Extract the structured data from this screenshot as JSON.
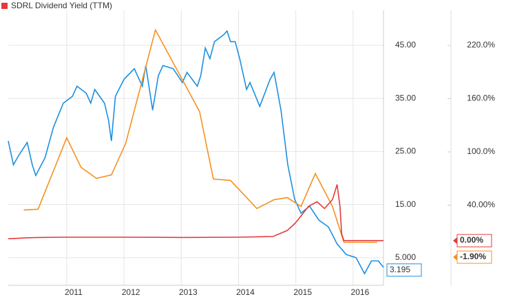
{
  "chart_data": {
    "type": "line",
    "xlim": [
      2009.98,
      2016.53
    ],
    "xticks": [
      2011,
      2012,
      2013,
      2014,
      2015,
      2016
    ],
    "ylim": [
      -0.2,
      51.6
    ],
    "yticks": [
      {
        "value": 5,
        "label": "5.000"
      },
      {
        "value": 15,
        "label": "15.00"
      },
      {
        "value": 25,
        "label": "25.00"
      },
      {
        "value": 35,
        "label": "35.00"
      },
      {
        "value": 45,
        "label": "45.00"
      }
    ],
    "y2lim": [
      -50.3,
      259.5
    ],
    "y2ticks": [
      {
        "value": 40,
        "label": "40.00%"
      },
      {
        "value": 100,
        "label": "100.0%"
      },
      {
        "value": 160,
        "label": "160.0%"
      },
      {
        "value": 220,
        "label": "220.0%"
      }
    ],
    "grid": true,
    "legend": "top-left",
    "series": [
      {
        "color": "#1a8fe0",
        "axis": "y",
        "end_label": "3.195",
        "x": [
          2009.98,
          2010.07,
          2010.17,
          2010.31,
          2010.4,
          2010.46,
          2010.62,
          2010.77,
          2010.94,
          2011.1,
          2011.18,
          2011.34,
          2011.42,
          2011.49,
          2011.66,
          2011.73,
          2011.78,
          2011.85,
          2012.0,
          2012.18,
          2012.32,
          2012.38,
          2012.5,
          2012.6,
          2012.68,
          2012.86,
          2013.02,
          2013.1,
          2013.28,
          2013.34,
          2013.42,
          2013.5,
          2013.58,
          2013.74,
          2013.8,
          2013.86,
          2013.94,
          2014.02,
          2014.14,
          2014.2,
          2014.37,
          2014.55,
          2014.62,
          2014.74,
          2014.86,
          2014.98,
          2015.09,
          2015.24,
          2015.4,
          2015.57,
          2015.72,
          2015.88,
          2016.05,
          2016.2,
          2016.32,
          2016.44,
          2016.53
        ],
        "values": [
          27.0,
          22.5,
          24.4,
          26.7,
          22.5,
          20.5,
          23.8,
          29.6,
          34.1,
          35.4,
          37.3,
          36.0,
          34.1,
          36.7,
          34.1,
          30.9,
          27.0,
          35.4,
          38.6,
          40.6,
          37.3,
          41.2,
          32.8,
          39.3,
          41.2,
          40.6,
          38.0,
          39.9,
          37.3,
          39.3,
          44.5,
          42.5,
          45.7,
          47.0,
          47.7,
          45.7,
          45.7,
          42.5,
          36.7,
          38.0,
          33.5,
          38.6,
          39.9,
          32.8,
          22.5,
          16.0,
          13.4,
          14.7,
          12.1,
          10.8,
          7.6,
          5.6,
          5.0,
          2.0,
          4.4,
          4.4,
          3.195
        ]
      },
      {
        "color": "#f5901e",
        "axis": "y2",
        "end_label": "-1.90%",
        "x": [
          2010.25,
          2010.5,
          2011.0,
          2011.25,
          2011.52,
          2011.78,
          2012.03,
          2012.55,
          2013.32,
          2013.56,
          2013.86,
          2014.32,
          2014.62,
          2014.85,
          2015.09,
          2015.34,
          2015.64,
          2015.84,
          2016.42
        ],
        "values": [
          34.6,
          35.4,
          115.9,
          82.6,
          70.2,
          74.1,
          109.7,
          237.4,
          145.3,
          69.4,
          67.9,
          36.2,
          46.2,
          48.5,
          38.5,
          75.6,
          38.5,
          -1.9,
          -1.9
        ]
      },
      {
        "name": "SDRL Dividend Yield (TTM)",
        "color": "#e5393b",
        "axis": "y2",
        "end_label": "0.00%",
        "x": [
          2009.98,
          2010.3,
          2010.5,
          2011.0,
          2012.0,
          2013.0,
          2014.0,
          2014.6,
          2014.85,
          2014.98,
          2015.05,
          2015.22,
          2015.37,
          2015.5,
          2015.64,
          2015.72,
          2015.77,
          2015.8,
          2015.84,
          2016.53
        ],
        "values": [
          2.1,
          3.2,
          3.6,
          3.9,
          3.9,
          3.6,
          3.9,
          4.7,
          11.4,
          19.1,
          24.5,
          38.5,
          43.9,
          36.2,
          46.2,
          63.3,
          38.5,
          7.5,
          0,
          0
        ]
      }
    ]
  }
}
